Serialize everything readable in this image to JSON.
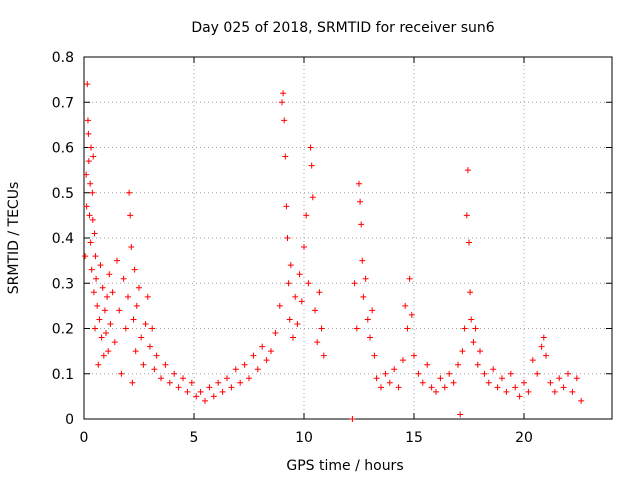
{
  "chart_data": {
    "type": "scatter",
    "title": "Day 025 of 2018, SRMTID for receiver sun6",
    "xlabel": "GPS time / hours",
    "ylabel": "SRMTID / TECUs",
    "xlim": [
      0,
      24
    ],
    "ylim": [
      0,
      0.8
    ],
    "xticks": [
      0,
      5,
      10,
      15,
      20
    ],
    "xtick_labels": [
      "0",
      "5",
      "10",
      "15",
      "20"
    ],
    "yticks": [
      0,
      0.1,
      0.2,
      0.3,
      0.4,
      0.5,
      0.6,
      0.7,
      0.8
    ],
    "ytick_labels": [
      "0",
      "0.1",
      "0.2",
      "0.3",
      "0.4",
      "0.5",
      "0.6",
      "0.7",
      "0.8"
    ],
    "grid": true,
    "marker": "+",
    "marker_color": "#ff0000",
    "series": [
      {
        "name": "SRMTID",
        "points": [
          [
            0.05,
            0.36
          ],
          [
            0.1,
            0.54
          ],
          [
            0.12,
            0.47
          ],
          [
            0.15,
            0.74
          ],
          [
            0.18,
            0.66
          ],
          [
            0.2,
            0.63
          ],
          [
            0.22,
            0.57
          ],
          [
            0.25,
            0.45
          ],
          [
            0.28,
            0.52
          ],
          [
            0.3,
            0.39
          ],
          [
            0.32,
            0.6
          ],
          [
            0.35,
            0.33
          ],
          [
            0.38,
            0.5
          ],
          [
            0.4,
            0.44
          ],
          [
            0.42,
            0.58
          ],
          [
            0.45,
            0.28
          ],
          [
            0.48,
            0.41
          ],
          [
            0.5,
            0.2
          ],
          [
            0.52,
            0.36
          ],
          [
            0.55,
            0.31
          ],
          [
            0.6,
            0.25
          ],
          [
            0.65,
            0.12
          ],
          [
            0.7,
            0.22
          ],
          [
            0.75,
            0.34
          ],
          [
            0.8,
            0.18
          ],
          [
            0.85,
            0.29
          ],
          [
            0.9,
            0.14
          ],
          [
            0.95,
            0.24
          ],
          [
            1.0,
            0.19
          ],
          [
            1.05,
            0.27
          ],
          [
            1.1,
            0.15
          ],
          [
            1.15,
            0.32
          ],
          [
            1.2,
            0.21
          ],
          [
            1.3,
            0.28
          ],
          [
            1.4,
            0.17
          ],
          [
            1.5,
            0.35
          ],
          [
            1.6,
            0.24
          ],
          [
            1.7,
            0.1
          ],
          [
            1.8,
            0.31
          ],
          [
            1.9,
            0.2
          ],
          [
            2.0,
            0.27
          ],
          [
            2.05,
            0.5
          ],
          [
            2.1,
            0.45
          ],
          [
            2.15,
            0.38
          ],
          [
            2.2,
            0.08
          ],
          [
            2.25,
            0.22
          ],
          [
            2.3,
            0.33
          ],
          [
            2.35,
            0.15
          ],
          [
            2.4,
            0.25
          ],
          [
            2.5,
            0.29
          ],
          [
            2.6,
            0.18
          ],
          [
            2.7,
            0.12
          ],
          [
            2.8,
            0.21
          ],
          [
            2.9,
            0.27
          ],
          [
            3.0,
            0.16
          ],
          [
            3.1,
            0.2
          ],
          [
            3.2,
            0.11
          ],
          [
            3.3,
            0.14
          ],
          [
            3.5,
            0.09
          ],
          [
            3.7,
            0.12
          ],
          [
            3.9,
            0.08
          ],
          [
            4.1,
            0.1
          ],
          [
            4.3,
            0.07
          ],
          [
            4.5,
            0.09
          ],
          [
            4.7,
            0.06
          ],
          [
            4.9,
            0.08
          ],
          [
            5.1,
            0.05
          ],
          [
            5.3,
            0.06
          ],
          [
            5.5,
            0.04
          ],
          [
            5.7,
            0.07
          ],
          [
            5.9,
            0.05
          ],
          [
            6.1,
            0.08
          ],
          [
            6.3,
            0.06
          ],
          [
            6.5,
            0.09
          ],
          [
            6.7,
            0.07
          ],
          [
            6.9,
            0.11
          ],
          [
            7.1,
            0.08
          ],
          [
            7.3,
            0.12
          ],
          [
            7.5,
            0.09
          ],
          [
            7.7,
            0.14
          ],
          [
            7.9,
            0.11
          ],
          [
            8.1,
            0.16
          ],
          [
            8.3,
            0.13
          ],
          [
            8.5,
            0.15
          ],
          [
            8.7,
            0.19
          ],
          [
            8.9,
            0.25
          ],
          [
            9.0,
            0.7
          ],
          [
            9.05,
            0.72
          ],
          [
            9.1,
            0.66
          ],
          [
            9.15,
            0.58
          ],
          [
            9.2,
            0.47
          ],
          [
            9.25,
            0.4
          ],
          [
            9.3,
            0.3
          ],
          [
            9.35,
            0.22
          ],
          [
            9.4,
            0.34
          ],
          [
            9.5,
            0.18
          ],
          [
            9.6,
            0.27
          ],
          [
            9.7,
            0.21
          ],
          [
            9.8,
            0.32
          ],
          [
            9.9,
            0.26
          ],
          [
            10.0,
            0.38
          ],
          [
            10.1,
            0.45
          ],
          [
            10.2,
            0.3
          ],
          [
            10.3,
            0.6
          ],
          [
            10.35,
            0.56
          ],
          [
            10.4,
            0.49
          ],
          [
            10.5,
            0.24
          ],
          [
            10.6,
            0.17
          ],
          [
            10.7,
            0.28
          ],
          [
            10.8,
            0.2
          ],
          [
            10.9,
            0.14
          ],
          [
            12.2,
            0.0
          ],
          [
            12.3,
            0.3
          ],
          [
            12.4,
            0.2
          ],
          [
            12.5,
            0.52
          ],
          [
            12.55,
            0.48
          ],
          [
            12.6,
            0.43
          ],
          [
            12.65,
            0.35
          ],
          [
            12.7,
            0.27
          ],
          [
            12.8,
            0.31
          ],
          [
            12.9,
            0.22
          ],
          [
            13.0,
            0.18
          ],
          [
            13.1,
            0.24
          ],
          [
            13.2,
            0.14
          ],
          [
            13.3,
            0.09
          ],
          [
            13.5,
            0.07
          ],
          [
            13.7,
            0.1
          ],
          [
            13.9,
            0.08
          ],
          [
            14.1,
            0.11
          ],
          [
            14.3,
            0.07
          ],
          [
            14.5,
            0.13
          ],
          [
            14.6,
            0.25
          ],
          [
            14.7,
            0.2
          ],
          [
            14.8,
            0.31
          ],
          [
            14.9,
            0.23
          ],
          [
            15.0,
            0.14
          ],
          [
            15.2,
            0.1
          ],
          [
            15.4,
            0.08
          ],
          [
            15.6,
            0.12
          ],
          [
            15.8,
            0.07
          ],
          [
            16.0,
            0.06
          ],
          [
            16.2,
            0.09
          ],
          [
            16.4,
            0.07
          ],
          [
            16.6,
            0.1
          ],
          [
            16.8,
            0.08
          ],
          [
            17.0,
            0.12
          ],
          [
            17.1,
            0.01
          ],
          [
            17.2,
            0.15
          ],
          [
            17.3,
            0.2
          ],
          [
            17.4,
            0.45
          ],
          [
            17.45,
            0.55
          ],
          [
            17.5,
            0.39
          ],
          [
            17.55,
            0.28
          ],
          [
            17.6,
            0.22
          ],
          [
            17.7,
            0.17
          ],
          [
            17.8,
            0.2
          ],
          [
            17.9,
            0.12
          ],
          [
            18.0,
            0.15
          ],
          [
            18.2,
            0.1
          ],
          [
            18.4,
            0.08
          ],
          [
            18.6,
            0.11
          ],
          [
            18.8,
            0.07
          ],
          [
            19.0,
            0.09
          ],
          [
            19.2,
            0.06
          ],
          [
            19.4,
            0.1
          ],
          [
            19.6,
            0.07
          ],
          [
            19.8,
            0.05
          ],
          [
            20.0,
            0.08
          ],
          [
            20.2,
            0.06
          ],
          [
            20.4,
            0.13
          ],
          [
            20.6,
            0.1
          ],
          [
            20.8,
            0.16
          ],
          [
            20.9,
            0.18
          ],
          [
            21.0,
            0.14
          ],
          [
            21.2,
            0.08
          ],
          [
            21.4,
            0.06
          ],
          [
            21.6,
            0.09
          ],
          [
            21.8,
            0.07
          ],
          [
            22.0,
            0.1
          ],
          [
            22.2,
            0.06
          ],
          [
            22.4,
            0.09
          ],
          [
            22.6,
            0.04
          ]
        ]
      }
    ]
  }
}
